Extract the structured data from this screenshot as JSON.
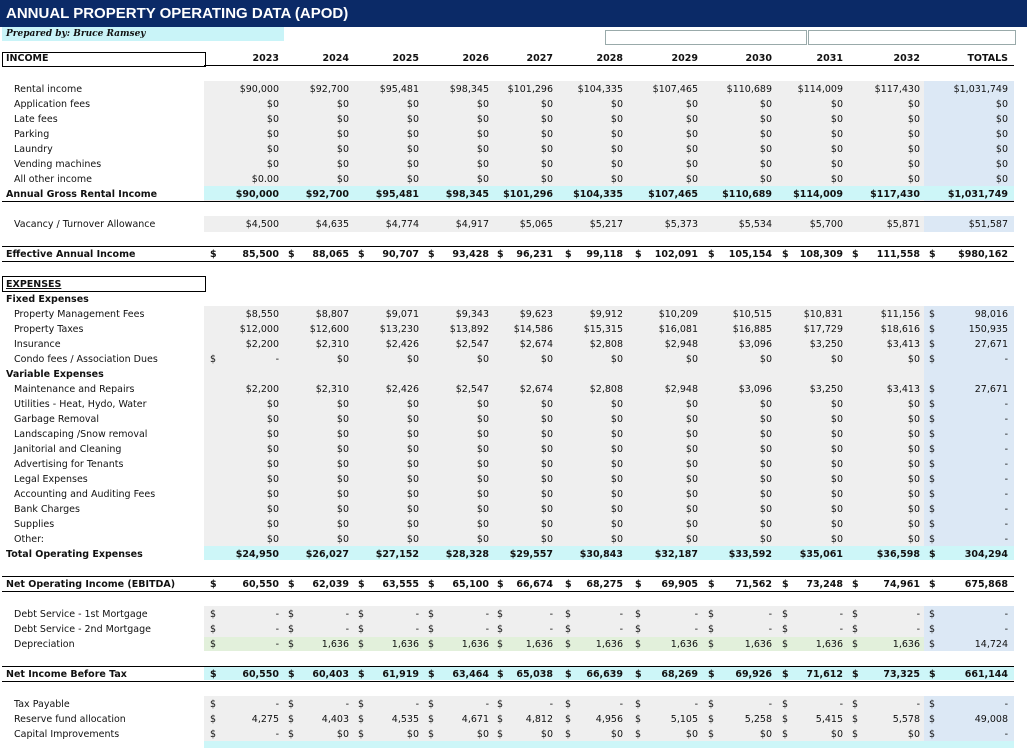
{
  "header": {
    "title": "ANNUAL PROPERTY OPERATING DATA (APOD)",
    "prepared_by": "Prepared by: Bruce Ramsey"
  },
  "columns": {
    "income_label": "INCOME",
    "years": [
      "2023",
      "2024",
      "2025",
      "2026",
      "2027",
      "2028",
      "2029",
      "2030",
      "2031",
      "2032"
    ],
    "totals_label": "TOTALS"
  },
  "rows": [
    {
      "label": "Rental income",
      "values": [
        "$90,000",
        "$92,700",
        "$95,481",
        "$98,345",
        "$101,296",
        "$104,335",
        "$107,465",
        "$110,689",
        "$114,009",
        "$117,430"
      ],
      "total": "$1,031,749"
    },
    {
      "label": "Application fees",
      "values": [
        "$0",
        "$0",
        "$0",
        "$0",
        "$0",
        "$0",
        "$0",
        "$0",
        "$0",
        "$0"
      ],
      "total": "$0"
    },
    {
      "label": "Late fees",
      "values": [
        "$0",
        "$0",
        "$0",
        "$0",
        "$0",
        "$0",
        "$0",
        "$0",
        "$0",
        "$0"
      ],
      "total": "$0"
    },
    {
      "label": "Parking",
      "values": [
        "$0",
        "$0",
        "$0",
        "$0",
        "$0",
        "$0",
        "$0",
        "$0",
        "$0",
        "$0"
      ],
      "total": "$0"
    },
    {
      "label": "Laundry",
      "values": [
        "$0",
        "$0",
        "$0",
        "$0",
        "$0",
        "$0",
        "$0",
        "$0",
        "$0",
        "$0"
      ],
      "total": "$0"
    },
    {
      "label": "Vending machines",
      "values": [
        "$0",
        "$0",
        "$0",
        "$0",
        "$0",
        "$0",
        "$0",
        "$0",
        "$0",
        "$0"
      ],
      "total": "$0"
    },
    {
      "label": "All other income",
      "values": [
        "$0.00",
        "$0",
        "$0",
        "$0",
        "$0",
        "$0",
        "$0",
        "$0",
        "$0",
        "$0"
      ],
      "total": "$0"
    },
    {
      "label": "Annual Gross Rental Income",
      "bold": true,
      "values": [
        "$90,000",
        "$92,700",
        "$95,481",
        "$98,345",
        "$101,296",
        "$104,335",
        "$107,465",
        "$110,689",
        "$114,009",
        "$117,430"
      ],
      "total": "$1,031,749"
    },
    {
      "label": "Vacancy / Turnover Allowance",
      "values": [
        "$4,500",
        "$4,635",
        "$4,774",
        "$4,917",
        "$5,065",
        "$5,217",
        "$5,373",
        "$5,534",
        "$5,700",
        "$5,871"
      ],
      "total": "$51,587"
    },
    {
      "label": "Effective Annual Income",
      "bold": true,
      "values": [
        "85,500",
        "88,065",
        "90,707",
        "93,428",
        "96,231",
        "99,118",
        "102,091",
        "105,154",
        "108,309",
        "111,558"
      ],
      "total": "$980,162"
    },
    {
      "label": "EXPENSES",
      "bold": true
    },
    {
      "label": "Fixed Expenses",
      "bold": true
    },
    {
      "label": "Property Management Fees",
      "values": [
        "$8,550",
        "$8,807",
        "$9,071",
        "$9,343",
        "$9,623",
        "$9,912",
        "$10,209",
        "$10,515",
        "$10,831",
        "$11,156"
      ],
      "total": "98,016"
    },
    {
      "label": "Property Taxes",
      "values": [
        "$12,000",
        "$12,600",
        "$13,230",
        "$13,892",
        "$14,586",
        "$15,315",
        "$16,081",
        "$16,885",
        "$17,729",
        "$18,616"
      ],
      "total": "150,935"
    },
    {
      "label": "Insurance",
      "values": [
        "$2,200",
        "$2,310",
        "$2,426",
        "$2,547",
        "$2,674",
        "$2,808",
        "$2,948",
        "$3,096",
        "$3,250",
        "$3,413"
      ],
      "total": "27,671"
    },
    {
      "label": "Condo fees / Association Dues",
      "values": [
        "-",
        "$0",
        "$0",
        "$0",
        "$0",
        "$0",
        "$0",
        "$0",
        "$0",
        "$0"
      ],
      "total": "-"
    },
    {
      "label": "Variable Expenses",
      "bold": true
    },
    {
      "label": "Maintenance and Repairs",
      "values": [
        "$2,200",
        "$2,310",
        "$2,426",
        "$2,547",
        "$2,674",
        "$2,808",
        "$2,948",
        "$3,096",
        "$3,250",
        "$3,413"
      ],
      "total": "27,671"
    },
    {
      "label": "Utilities - Heat, Hydo, Water",
      "values": [
        "$0",
        "$0",
        "$0",
        "$0",
        "$0",
        "$0",
        "$0",
        "$0",
        "$0",
        "$0"
      ],
      "total": "-"
    },
    {
      "label": "Garbage Removal",
      "values": [
        "$0",
        "$0",
        "$0",
        "$0",
        "$0",
        "$0",
        "$0",
        "$0",
        "$0",
        "$0"
      ],
      "total": "-"
    },
    {
      "label": "Landscaping /Snow removal",
      "values": [
        "$0",
        "$0",
        "$0",
        "$0",
        "$0",
        "$0",
        "$0",
        "$0",
        "$0",
        "$0"
      ],
      "total": "-"
    },
    {
      "label": "Janitorial and Cleaning",
      "values": [
        "$0",
        "$0",
        "$0",
        "$0",
        "$0",
        "$0",
        "$0",
        "$0",
        "$0",
        "$0"
      ],
      "total": "-"
    },
    {
      "label": "Advertising for Tenants",
      "values": [
        "$0",
        "$0",
        "$0",
        "$0",
        "$0",
        "$0",
        "$0",
        "$0",
        "$0",
        "$0"
      ],
      "total": "-"
    },
    {
      "label": "Legal Expenses",
      "values": [
        "$0",
        "$0",
        "$0",
        "$0",
        "$0",
        "$0",
        "$0",
        "$0",
        "$0",
        "$0"
      ],
      "total": "-"
    },
    {
      "label": "Accounting and Auditing Fees",
      "values": [
        "$0",
        "$0",
        "$0",
        "$0",
        "$0",
        "$0",
        "$0",
        "$0",
        "$0",
        "$0"
      ],
      "total": "-"
    },
    {
      "label": "Bank Charges",
      "values": [
        "$0",
        "$0",
        "$0",
        "$0",
        "$0",
        "$0",
        "$0",
        "$0",
        "$0",
        "$0"
      ],
      "total": "-"
    },
    {
      "label": "Supplies",
      "values": [
        "$0",
        "$0",
        "$0",
        "$0",
        "$0",
        "$0",
        "$0",
        "$0",
        "$0",
        "$0"
      ],
      "total": "-"
    },
    {
      "label": "Other:",
      "values": [
        "$0",
        "$0",
        "$0",
        "$0",
        "$0",
        "$0",
        "$0",
        "$0",
        "$0",
        "$0"
      ],
      "total": "-"
    },
    {
      "label": "Total Operating Expenses",
      "bold": true,
      "values": [
        "$24,950",
        "$26,027",
        "$27,152",
        "$28,328",
        "$29,557",
        "$30,843",
        "$32,187",
        "$33,592",
        "$35,061",
        "$36,598"
      ],
      "total": "304,294"
    },
    {
      "label": "Net Operating Income (EBITDA)",
      "bold": true,
      "values": [
        "60,550",
        "62,039",
        "63,555",
        "65,100",
        "66,674",
        "68,275",
        "69,905",
        "71,562",
        "73,248",
        "74,961"
      ],
      "total": "675,868"
    },
    {
      "label": "Debt Service - 1st Mortgage",
      "values": [
        "-",
        "-",
        "-",
        "-",
        "-",
        "-",
        "-",
        "-",
        "-",
        "-"
      ],
      "total": "-"
    },
    {
      "label": "Debt Service - 2nd Mortgage",
      "values": [
        "-",
        "-",
        "-",
        "-",
        "-",
        "-",
        "-",
        "-",
        "-",
        "-"
      ],
      "total": "-"
    },
    {
      "label": "Depreciation",
      "values": [
        "-",
        "1,636",
        "1,636",
        "1,636",
        "1,636",
        "1,636",
        "1,636",
        "1,636",
        "1,636",
        "1,636"
      ],
      "total": "14,724"
    },
    {
      "label": "Net Income Before Tax",
      "bold": true,
      "values": [
        "60,550",
        "60,403",
        "61,919",
        "63,464",
        "65,038",
        "66,639",
        "68,269",
        "69,926",
        "71,612",
        "73,325"
      ],
      "total": "661,144"
    },
    {
      "label": "Tax Payable",
      "values": [
        "-",
        "-",
        "-",
        "-",
        "-",
        "-",
        "-",
        "-",
        "-",
        "-"
      ],
      "total": "-"
    },
    {
      "label": "Reserve fund allocation",
      "values": [
        "4,275",
        "4,403",
        "4,535",
        "4,671",
        "4,812",
        "4,956",
        "5,105",
        "5,258",
        "5,415",
        "5,578"
      ],
      "total": "49,008"
    },
    {
      "label": "Capital Improvements",
      "values": [
        "-",
        "$0",
        "$0",
        "$0",
        "$0",
        "$0",
        "$0",
        "$0",
        "$0",
        "$0"
      ],
      "total": "-"
    }
  ],
  "colors": {
    "title_bar": "#0b2a67",
    "highlight": "#cdf6f8",
    "input_band": "#efefef",
    "totals_band": "#dce8f5"
  }
}
